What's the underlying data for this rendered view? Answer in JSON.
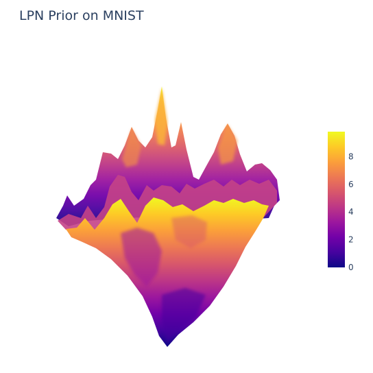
{
  "chart_data": {
    "type": "surface",
    "title": "LPN Prior on MNIST",
    "colorscale": [
      "#0d0887",
      "#46039f",
      "#7201a8",
      "#9c179e",
      "#bd3786",
      "#d8576b",
      "#ed7953",
      "#fb9f3a",
      "#fdca26",
      "#f0f921"
    ],
    "colorbar": {
      "range": [
        0,
        9.8
      ],
      "ticks": [
        0,
        2,
        4,
        6,
        8
      ],
      "tick_labels": [
        "0",
        "2",
        "4",
        "6",
        "8"
      ]
    },
    "zlim": [
      0,
      9.8
    ],
    "grid": false,
    "legend": "none"
  }
}
